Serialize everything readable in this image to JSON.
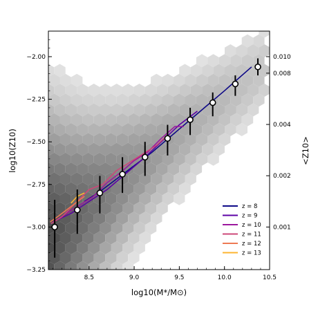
{
  "chart_data": {
    "type": "scatter",
    "title": "",
    "xlabel": "log10(M*/M⊙)",
    "ylabel": "log10(Z10)",
    "ylabel_right": "<Z10>",
    "xlim": [
      8.05,
      10.5
    ],
    "ylim": [
      -3.25,
      -1.85
    ],
    "x_ticks": [
      8.5,
      9.0,
      9.5,
      10.0,
      10.5
    ],
    "x_tick_labels": [
      "8.5",
      "9.0",
      "9.5",
      "10.0",
      "10.5"
    ],
    "y_ticks": [
      -3.25,
      -3.0,
      -2.75,
      -2.5,
      -2.25,
      -2.0
    ],
    "y_tick_labels": [
      "−3.25",
      "−3.00",
      "−2.75",
      "−2.50",
      "−2.25",
      "−2.00"
    ],
    "right_ticks": [
      0.001,
      0.002,
      0.004,
      0.008,
      0.01
    ],
    "right_tick_labels": [
      "0.001",
      "0.002",
      "0.004",
      "0.008",
      "0.010"
    ],
    "grid": false,
    "legend_position": "bottom-right",
    "background": "grey hexbin density of individual galaxies",
    "binned_median": {
      "x": [
        8.12,
        8.37,
        8.62,
        8.87,
        9.12,
        9.37,
        9.62,
        9.87,
        10.12,
        10.37
      ],
      "y": [
        -3.0,
        -2.9,
        -2.8,
        -2.69,
        -2.59,
        -2.48,
        -2.37,
        -2.27,
        -2.16,
        -2.06
      ],
      "err_low": [
        0.18,
        0.14,
        0.12,
        0.11,
        0.11,
        0.1,
        0.09,
        0.08,
        0.07,
        0.05
      ],
      "err_high": [
        0.16,
        0.12,
        0.1,
        0.1,
        0.09,
        0.08,
        0.07,
        0.06,
        0.05,
        0.05
      ]
    },
    "series": [
      {
        "name": "z = 8",
        "color": "#0d0887",
        "x": [
          8.45,
          8.6,
          8.8,
          9.0,
          9.2,
          9.4,
          9.6,
          9.8,
          10.0,
          10.15,
          10.3
        ],
        "y": [
          -2.85,
          -2.8,
          -2.72,
          -2.64,
          -2.56,
          -2.47,
          -2.38,
          -2.29,
          -2.2,
          -2.13,
          -2.06
        ]
      },
      {
        "name": "z = 9",
        "color": "#5c01a6",
        "x": [
          8.1,
          8.3,
          8.5,
          8.7,
          8.9,
          9.1,
          9.3,
          9.5,
          9.7
        ],
        "y": [
          -2.97,
          -2.92,
          -2.85,
          -2.78,
          -2.69,
          -2.6,
          -2.5,
          -2.4,
          -2.32
        ]
      },
      {
        "name": "z = 10",
        "color": "#9c179e",
        "x": [
          8.08,
          8.25,
          8.4,
          8.55,
          8.7,
          8.85,
          9.0,
          9.15,
          9.3,
          9.45,
          9.55
        ],
        "y": [
          -2.98,
          -2.92,
          -2.87,
          -2.82,
          -2.74,
          -2.68,
          -2.61,
          -2.56,
          -2.48,
          -2.41,
          -2.41
        ]
      },
      {
        "name": "z = 11",
        "color": "#cc4778",
        "x": [
          8.08,
          8.2,
          8.35,
          8.5,
          8.65,
          8.8,
          8.95,
          9.1,
          9.25,
          9.35
        ],
        "y": [
          -2.98,
          -2.94,
          -2.86,
          -2.78,
          -2.75,
          -2.67,
          -2.62,
          -2.57,
          -2.52,
          -2.47
        ]
      },
      {
        "name": "z = 12",
        "color": "#ed7953",
        "x": [
          8.07,
          8.15,
          8.25,
          8.35,
          8.45
        ],
        "y": [
          -2.97,
          -2.94,
          -2.9,
          -2.86,
          -2.82
        ]
      },
      {
        "name": "z = 13",
        "color": "#fdb42f",
        "x": [
          8.3,
          8.37,
          8.45
        ],
        "y": [
          -2.86,
          -2.82,
          -2.8
        ]
      }
    ]
  }
}
